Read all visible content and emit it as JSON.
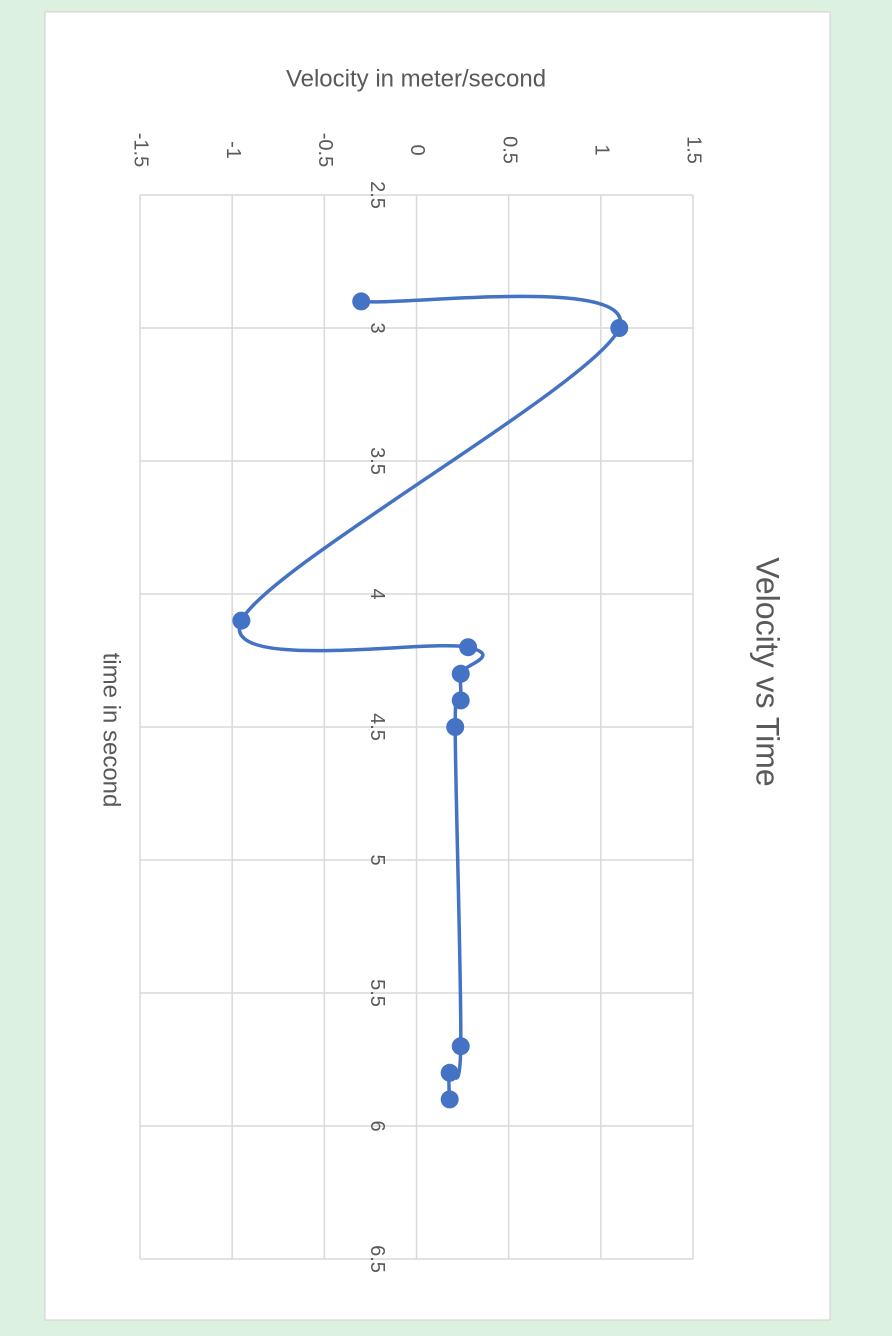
{
  "chart_data": {
    "type": "line",
    "title": "Velocity vs Time",
    "x_label": "time in second",
    "y_label": "Velocity in meter/second",
    "x": [
      2.9,
      3.0,
      4.1,
      4.2,
      4.3,
      4.4,
      4.5,
      5.7,
      5.8,
      5.9
    ],
    "values": [
      -0.3,
      1.1,
      -0.95,
      0.28,
      0.24,
      0.24,
      0.21,
      0.24,
      0.18,
      0.18
    ],
    "color": "#4472c4",
    "xlim": [
      2.5,
      6.5
    ],
    "xticks": [
      2.5,
      3,
      3.5,
      4,
      4.5,
      5,
      5.5,
      6,
      6.5
    ],
    "ylim": [
      -1.5,
      1.5
    ],
    "yticks": [
      -1.5,
      -1,
      -0.5,
      0,
      0.5,
      1,
      1.5
    ],
    "grid": true,
    "smooth": true,
    "rotation": 90
  }
}
